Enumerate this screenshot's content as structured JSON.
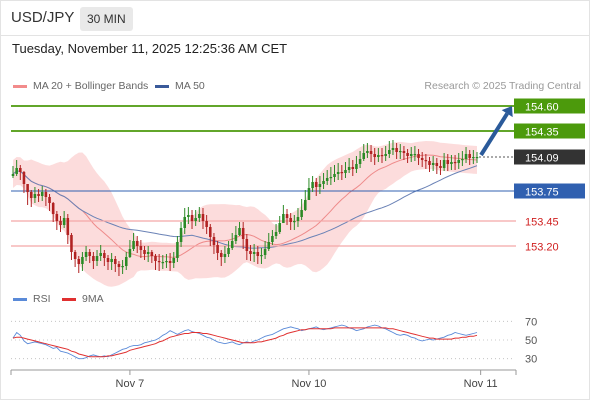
{
  "header": {
    "symbol": "USD/JPY",
    "timeframe": "30 MIN"
  },
  "timestamp": "Tuesday, November 11, 2025 12:25:36 AM CET",
  "legend": {
    "ma20_bb": "MA 20 + Bollinger Bands",
    "ma50": "MA 50",
    "source": "Research © 2025 Trading Central",
    "rsi": "RSI",
    "rsi_ma": "9MA"
  },
  "colors": {
    "resistance_green": "#4c9a0c",
    "support_blue": "#3060b0",
    "support_red": "#d02020",
    "current_price": "#333333",
    "bollinger_band": "#fcd6d6",
    "ma20": "#ee8a8a",
    "ma50": "#6a82b6",
    "candle_up": "#2b8a26",
    "candle_down": "#b12222",
    "arrow": "#2a5a9a",
    "rsi": "#5a8ad8",
    "rsi_ma": "#e03030"
  },
  "chart_data": {
    "type": "candlestick",
    "ylim": [
      152.85,
      154.72
    ],
    "current_price": 154.09,
    "levels": [
      {
        "value": "154.60",
        "kind": "resistance",
        "color": "#4c9a0c"
      },
      {
        "value": "154.35",
        "kind": "resistance",
        "color": "#4c9a0c"
      },
      {
        "value": "154.09",
        "kind": "current",
        "color": "#333333"
      },
      {
        "value": "153.75",
        "kind": "support",
        "color": "#3060b0"
      },
      {
        "value": "153.45",
        "kind": "support-red",
        "color": "#d02020"
      },
      {
        "value": "153.20",
        "kind": "support-red",
        "color": "#d02020"
      }
    ],
    "target_arrow": {
      "from": 154.09,
      "to": 154.6
    },
    "x_ticks": [
      "Nov 7",
      "Nov 10",
      "Nov 11"
    ],
    "x_tick_index": [
      32,
      81,
      128
    ],
    "close": [
      153.92,
      153.98,
      153.94,
      153.82,
      153.74,
      153.68,
      153.72,
      153.7,
      153.74,
      153.69,
      153.63,
      153.52,
      153.45,
      153.41,
      153.48,
      153.31,
      153.14,
      153.07,
      153.02,
      153.09,
      153.14,
      153.1,
      153.05,
      153.1,
      153.13,
      153.08,
      153.04,
      153.07,
      153.02,
      152.99,
      153.0,
      153.09,
      153.17,
      153.25,
      153.2,
      153.16,
      153.12,
      153.14,
      153.1,
      153.05,
      153.04,
      153.04,
      153.05,
      153.03,
      153.08,
      153.24,
      153.38,
      153.49,
      153.51,
      153.45,
      153.48,
      153.52,
      153.45,
      153.39,
      153.29,
      153.21,
      153.13,
      153.09,
      153.12,
      153.18,
      153.25,
      153.31,
      153.38,
      153.27,
      153.15,
      153.12,
      153.14,
      153.1,
      153.11,
      153.17,
      153.24,
      153.3,
      153.34,
      153.43,
      153.52,
      153.48,
      153.44,
      153.45,
      153.49,
      153.56,
      153.66,
      153.78,
      153.84,
      153.79,
      153.82,
      153.85,
      153.88,
      153.89,
      153.92,
      153.94,
      153.93,
      153.96,
      153.99,
      153.97,
      154.02,
      154.07,
      154.13,
      154.15,
      154.12,
      154.09,
      154.11,
      154.1,
      154.12,
      154.16,
      154.18,
      154.14,
      154.15,
      154.13,
      154.1,
      154.12,
      154.12,
      154.08,
      154.06,
      154.05,
      154.01,
      154.03,
      154.0,
      153.98,
      154.06,
      154.02,
      154.04,
      154.03,
      154.06,
      154.07,
      154.12,
      154.08,
      154.09,
      154.09
    ],
    "range": [
      [
        153.88,
        154.0
      ],
      [
        153.9,
        154.06
      ],
      [
        153.86,
        154.01
      ],
      [
        153.73,
        153.95
      ],
      [
        153.61,
        153.82
      ],
      [
        153.59,
        153.76
      ],
      [
        153.63,
        153.79
      ],
      [
        153.64,
        153.77
      ],
      [
        153.65,
        153.8
      ],
      [
        153.6,
        153.77
      ],
      [
        153.55,
        153.72
      ],
      [
        153.44,
        153.64
      ],
      [
        153.36,
        153.55
      ],
      [
        153.34,
        153.5
      ],
      [
        153.38,
        153.55
      ],
      [
        153.22,
        153.52
      ],
      [
        153.06,
        153.33
      ],
      [
        152.99,
        153.16
      ],
      [
        152.93,
        153.1
      ],
      [
        152.95,
        153.14
      ],
      [
        153.05,
        153.2
      ],
      [
        153.03,
        153.17
      ],
      [
        152.97,
        153.14
      ],
      [
        153.0,
        153.16
      ],
      [
        153.05,
        153.21
      ],
      [
        153.0,
        153.16
      ],
      [
        152.96,
        153.11
      ],
      [
        152.96,
        153.13
      ],
      [
        152.94,
        153.1
      ],
      [
        152.9,
        153.05
      ],
      [
        152.92,
        153.06
      ],
      [
        152.96,
        153.14
      ],
      [
        153.08,
        153.26
      ],
      [
        153.15,
        153.33
      ],
      [
        153.13,
        153.3
      ],
      [
        153.08,
        153.26
      ],
      [
        153.06,
        153.2
      ],
      [
        153.04,
        153.2
      ],
      [
        153.03,
        153.16
      ],
      [
        152.96,
        153.12
      ],
      [
        152.95,
        153.12
      ],
      [
        152.97,
        153.11
      ],
      [
        152.98,
        153.12
      ],
      [
        152.95,
        153.13
      ],
      [
        152.98,
        153.14
      ],
      [
        153.04,
        153.3
      ],
      [
        153.19,
        153.44
      ],
      [
        153.32,
        153.58
      ],
      [
        153.42,
        153.59
      ],
      [
        153.37,
        153.56
      ],
      [
        153.4,
        153.56
      ],
      [
        153.44,
        153.59
      ],
      [
        153.37,
        153.58
      ],
      [
        153.32,
        153.51
      ],
      [
        153.2,
        153.42
      ],
      [
        153.12,
        153.33
      ],
      [
        153.06,
        153.25
      ],
      [
        153.0,
        153.16
      ],
      [
        153.03,
        153.2
      ],
      [
        153.09,
        153.25
      ],
      [
        153.16,
        153.33
      ],
      [
        153.22,
        153.4
      ],
      [
        153.3,
        153.44
      ],
      [
        153.17,
        153.44
      ],
      [
        153.06,
        153.32
      ],
      [
        153.05,
        153.21
      ],
      [
        153.04,
        153.22
      ],
      [
        153.02,
        153.2
      ],
      [
        153.02,
        153.18
      ],
      [
        153.07,
        153.25
      ],
      [
        153.15,
        153.33
      ],
      [
        153.21,
        153.36
      ],
      [
        153.27,
        153.42
      ],
      [
        153.32,
        153.5
      ],
      [
        153.43,
        153.61
      ],
      [
        153.41,
        153.57
      ],
      [
        153.36,
        153.53
      ],
      [
        153.36,
        153.51
      ],
      [
        153.39,
        153.58
      ],
      [
        153.46,
        153.67
      ],
      [
        153.55,
        153.76
      ],
      [
        153.7,
        153.88
      ],
      [
        153.74,
        153.9
      ],
      [
        153.7,
        153.88
      ],
      [
        153.72,
        153.9
      ],
      [
        153.77,
        153.93
      ],
      [
        153.81,
        153.96
      ],
      [
        153.81,
        153.99
      ],
      [
        153.84,
        154.01
      ],
      [
        153.86,
        154.03
      ],
      [
        153.86,
        154.01
      ],
      [
        153.88,
        154.04
      ],
      [
        153.93,
        154.08
      ],
      [
        153.9,
        154.06
      ],
      [
        153.93,
        154.1
      ],
      [
        153.98,
        154.15
      ],
      [
        154.05,
        154.22
      ],
      [
        154.08,
        154.23
      ],
      [
        154.04,
        154.21
      ],
      [
        154.01,
        154.18
      ],
      [
        154.04,
        154.18
      ],
      [
        154.03,
        154.18
      ],
      [
        154.05,
        154.2
      ],
      [
        154.08,
        154.25
      ],
      [
        154.11,
        154.26
      ],
      [
        154.07,
        154.23
      ],
      [
        154.07,
        154.22
      ],
      [
        154.06,
        154.2
      ],
      [
        154.03,
        154.17
      ],
      [
        154.04,
        154.19
      ],
      [
        154.05,
        154.2
      ],
      [
        154.01,
        154.17
      ],
      [
        153.99,
        154.14
      ],
      [
        153.97,
        154.12
      ],
      [
        153.94,
        154.09
      ],
      [
        153.95,
        154.1
      ],
      [
        153.92,
        154.08
      ],
      [
        153.91,
        154.06
      ],
      [
        153.95,
        154.13
      ],
      [
        153.95,
        154.12
      ],
      [
        153.96,
        154.11
      ],
      [
        153.96,
        154.11
      ],
      [
        153.97,
        154.13
      ],
      [
        154.0,
        154.15
      ],
      [
        154.03,
        154.19
      ],
      [
        154.01,
        154.16
      ],
      [
        154.02,
        154.16
      ],
      [
        154.03,
        154.14
      ]
    ],
    "rsi": {
      "ylim": [
        20,
        80
      ],
      "levels": [
        "70",
        "50",
        "30"
      ],
      "values": [
        52,
        58,
        55,
        49,
        46,
        47,
        48,
        47,
        46,
        45,
        43,
        41,
        42,
        38,
        37,
        36,
        34,
        32,
        30,
        30,
        31,
        33,
        34,
        33,
        32,
        33,
        32,
        34,
        36,
        38,
        40,
        41,
        43,
        44,
        44,
        45,
        47,
        48,
        49,
        50,
        52,
        55,
        57,
        60,
        58,
        56,
        58,
        60,
        61,
        59,
        58,
        57,
        55,
        53,
        52,
        50,
        48,
        47,
        46,
        47,
        48,
        46,
        45,
        47,
        48,
        47,
        49,
        50,
        52,
        54,
        55,
        56,
        58,
        60,
        62,
        63,
        64,
        63,
        62,
        60,
        61,
        62,
        63,
        64,
        62,
        61,
        62,
        63,
        64,
        65,
        66,
        65,
        63,
        62,
        60,
        61,
        62,
        64,
        65,
        66,
        65,
        63,
        62,
        60,
        58,
        56,
        55,
        56,
        55,
        53,
        52,
        50,
        49,
        50,
        51,
        50,
        51,
        52,
        53,
        55,
        56,
        58,
        57,
        56,
        55,
        56,
        57,
        58
      ],
      "ma_values": [
        52,
        53,
        53,
        52,
        51,
        50,
        49,
        48,
        47,
        46,
        45,
        44,
        43,
        42,
        41,
        40,
        38,
        37,
        35,
        34,
        33,
        32,
        32,
        32,
        32,
        32,
        33,
        33,
        34,
        35,
        36,
        37,
        39,
        40,
        41,
        42,
        43,
        44,
        45,
        46,
        48,
        49,
        51,
        53,
        54,
        55,
        56,
        57,
        57,
        58,
        58,
        58,
        57,
        57,
        56,
        55,
        54,
        53,
        52,
        51,
        50,
        49,
        48,
        47,
        47,
        47,
        47,
        48,
        48,
        49,
        50,
        51,
        52,
        54,
        55,
        57,
        58,
        59,
        60,
        61,
        61,
        62,
        62,
        62,
        62,
        62,
        62,
        62,
        63,
        63,
        63,
        63,
        63,
        63,
        63,
        63,
        63,
        63,
        63,
        63,
        63,
        63,
        63,
        62,
        62,
        61,
        60,
        59,
        58,
        57,
        56,
        55,
        54,
        53,
        52,
        52,
        51,
        51,
        51,
        51,
        51,
        52,
        52,
        53,
        53,
        54,
        54,
        55
      ]
    }
  }
}
